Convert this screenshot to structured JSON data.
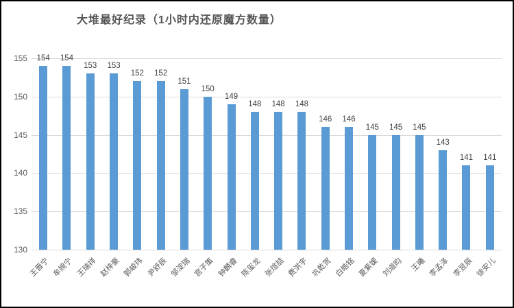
{
  "title": "大堆最好纪录（1小时内还原魔方数量）",
  "chart_data": {
    "type": "bar",
    "title": "大堆最好纪录（1小时内还原魔方数量）",
    "categories": [
      "王晋宁",
      "牟婉宁",
      "王瑞祥",
      "赵梓豪",
      "郭峻玮",
      "尹舒辰",
      "邹淀瑞",
      "宫子策",
      "钟麟睿",
      "陈玺龙",
      "张煊喆",
      "费洪宇",
      "巩乾贺",
      "白皓铭",
      "夏紫嫒",
      "刘道昀",
      "王曦",
      "李孟泽",
      "李昱辰",
      "徐安儿"
    ],
    "values": [
      154,
      154,
      153,
      153,
      152,
      152,
      151,
      150,
      149,
      148,
      148,
      148,
      146,
      146,
      145,
      145,
      145,
      143,
      141,
      141
    ],
    "xlabel": "",
    "ylabel": "",
    "ylim": [
      130,
      155
    ],
    "yticks": [
      130,
      135,
      140,
      145,
      150,
      155
    ],
    "grid": "horizontal",
    "legend_position": "none",
    "value_labels": true
  },
  "colors": {
    "bar": "#5b9bd5",
    "grid": "#d9d9d9",
    "title_text": "#555555",
    "axis_text": "#595959",
    "value_text": "#404040",
    "border": "#000000",
    "background": "#ffffff"
  }
}
